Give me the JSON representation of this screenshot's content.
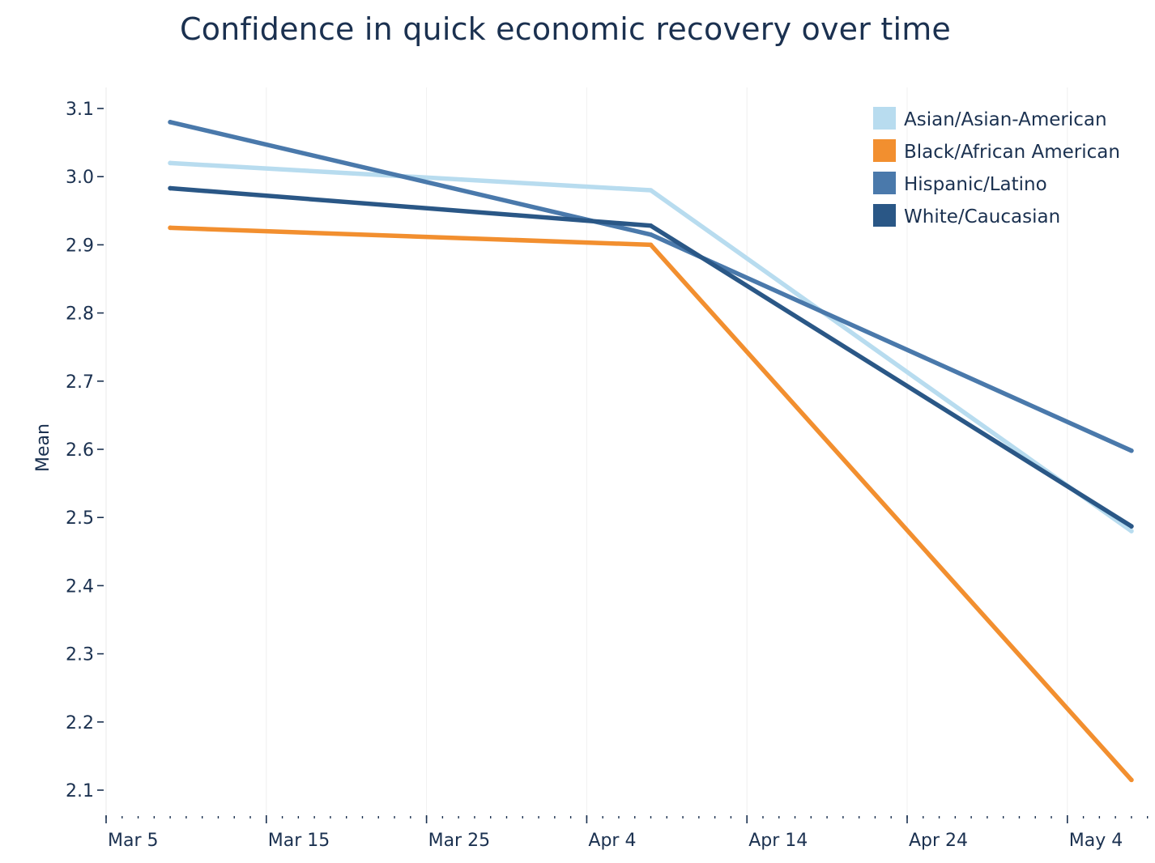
{
  "chart_data": {
    "type": "line",
    "title": "Confidence in quick economic recovery over time",
    "xlabel": "",
    "ylabel": "Mean",
    "x_ticks": [
      "Mar 5",
      "Mar 15",
      "Mar 25",
      "Apr 4",
      "Apr 14",
      "Apr 24",
      "May 4"
    ],
    "x": [
      "Mar 9",
      "Apr 8",
      "May 8"
    ],
    "y_ticks": [
      "2.1",
      "2.2",
      "2.3",
      "2.4",
      "2.5",
      "2.6",
      "2.7",
      "2.8",
      "2.9",
      "3.0",
      "3.1"
    ],
    "ylim": [
      2.08,
      3.16
    ],
    "xlim": [
      "Mar 5",
      "May 9"
    ],
    "grid": "vertical",
    "legend_position": "top-right",
    "series": [
      {
        "name": "Asian/Asian-American",
        "color": "#b8dcef",
        "values": [
          3.02,
          2.98,
          2.48
        ]
      },
      {
        "name": "Black/African American",
        "color": "#f28f2f",
        "values": [
          2.925,
          2.9,
          2.115
        ]
      },
      {
        "name": "Hispanic/Latino",
        "color": "#4a79ab",
        "values": [
          3.08,
          2.915,
          2.598
        ]
      },
      {
        "name": "White/Caucasian",
        "color": "#2a5786",
        "values": [
          2.983,
          2.928,
          2.487
        ]
      }
    ]
  }
}
